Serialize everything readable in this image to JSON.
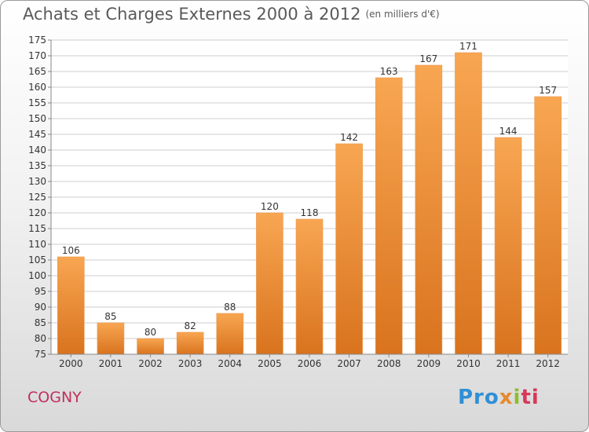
{
  "header": {
    "title": "Achats et Charges Externes 2000 à 2012",
    "unit": "(en milliers d'€)"
  },
  "footer": {
    "commune": "COGNY",
    "logo_text": "Proxiti"
  },
  "colors": {
    "bar_top": "#f8a652",
    "bar_bottom": "#d9731e",
    "commune_text": "#c0305e",
    "grid": "#cccccc"
  },
  "chart_data": {
    "type": "bar",
    "title": "Achats et Charges Externes 2000 à 2012",
    "subtitle": "(en milliers d'€)",
    "categories": [
      "2000",
      "2001",
      "2002",
      "2003",
      "2004",
      "2005",
      "2006",
      "2007",
      "2008",
      "2009",
      "2010",
      "2011",
      "2012"
    ],
    "values": [
      106,
      85,
      80,
      82,
      88,
      120,
      118,
      142,
      163,
      167,
      171,
      144,
      157
    ],
    "ylim": [
      75,
      175
    ],
    "yticks": [
      75,
      80,
      85,
      90,
      95,
      100,
      105,
      110,
      115,
      120,
      125,
      130,
      135,
      140,
      145,
      150,
      155,
      160,
      165,
      170,
      175
    ],
    "grid": true,
    "xlabel": "",
    "ylabel": ""
  }
}
